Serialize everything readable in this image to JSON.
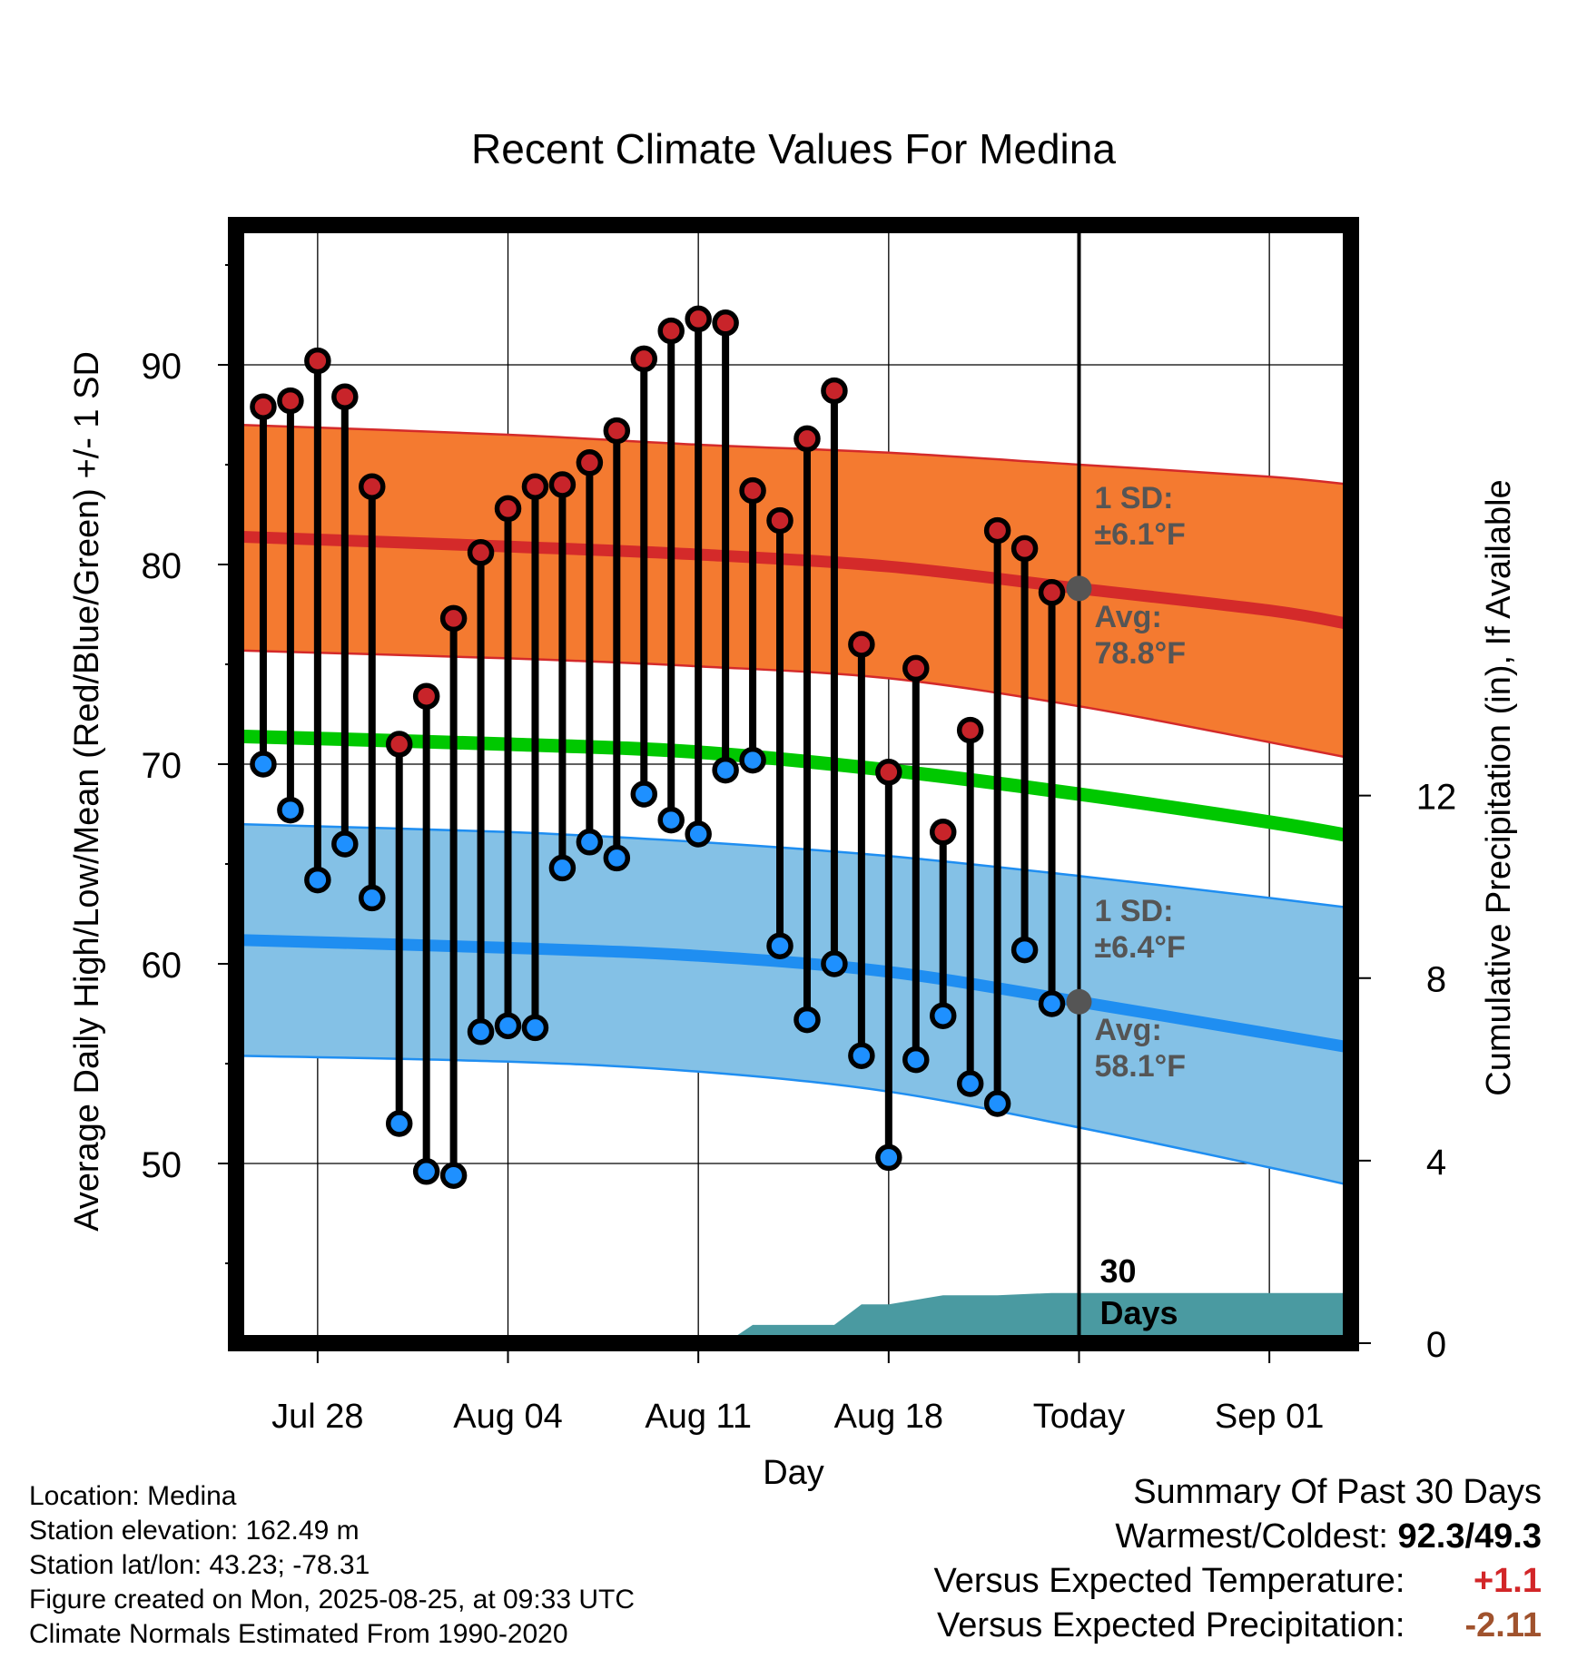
{
  "chart_data": {
    "type": "line",
    "title": "Recent Climate Values For Medina",
    "xlabel": "Day",
    "ylabel": "Average Daily High/Low/Mean (Red/Blue/Green) +/- 1 SD",
    "y2label": "Cumulative Precipitation (in), If Available",
    "x_tick_labels": [
      "Jul 28",
      "Aug 04",
      "Aug 11",
      "Aug 18",
      "Today",
      "Sep 01"
    ],
    "x_range": [
      "Jul 25",
      "Sep 04"
    ],
    "ylim": [
      41,
      97
    ],
    "yticks": [
      50,
      60,
      70,
      80,
      90
    ],
    "y2lim": [
      0,
      24.5
    ],
    "y2ticks": [
      0,
      4,
      8,
      12
    ],
    "grid": true,
    "today": "Aug 25",
    "days": [
      "Jul 25",
      "Jul 26",
      "Jul 27",
      "Jul 28",
      "Jul 29",
      "Jul 30",
      "Jul 31",
      "Aug 01",
      "Aug 02",
      "Aug 03",
      "Aug 04",
      "Aug 05",
      "Aug 06",
      "Aug 07",
      "Aug 08",
      "Aug 09",
      "Aug 10",
      "Aug 11",
      "Aug 12",
      "Aug 13",
      "Aug 14",
      "Aug 15",
      "Aug 16",
      "Aug 17",
      "Aug 18",
      "Aug 19",
      "Aug 20",
      "Aug 21",
      "Aug 22",
      "Aug 23",
      "Aug 24"
    ],
    "daily_high": [
      null,
      87.9,
      88.2,
      90.2,
      88.4,
      83.9,
      71.0,
      73.4,
      77.3,
      80.6,
      82.8,
      83.9,
      84.0,
      85.1,
      86.7,
      90.3,
      91.7,
      92.3,
      92.1,
      83.7,
      82.2,
      86.3,
      88.7,
      76.0,
      69.6,
      74.8,
      66.6,
      71.7,
      81.7,
      80.8,
      78.6
    ],
    "daily_low": [
      null,
      70.0,
      67.7,
      64.2,
      66.0,
      63.3,
      52.0,
      49.6,
      49.4,
      56.6,
      56.9,
      56.8,
      64.8,
      66.1,
      65.3,
      68.5,
      67.2,
      66.5,
      69.7,
      70.2,
      60.9,
      57.2,
      60.0,
      55.4,
      50.3,
      55.2,
      57.4,
      54.0,
      53.0,
      60.7,
      58.0
    ],
    "normal_days": [
      "Jul 25",
      "Aug 04",
      "Aug 11",
      "Aug 18",
      "Aug 25",
      "Sep 01",
      "Sep 04"
    ],
    "normal_high": [
      81.4,
      80.9,
      80.5,
      79.9,
      78.8,
      77.7,
      77.0
    ],
    "normal_high_sd_upper": [
      87.0,
      86.5,
      86.0,
      85.6,
      85.0,
      84.4,
      84.0
    ],
    "normal_high_sd_lower": [
      75.7,
      75.3,
      74.9,
      74.3,
      72.9,
      71.1,
      70.3
    ],
    "normal_mean": [
      71.4,
      71.0,
      70.6,
      69.7,
      68.5,
      67.1,
      66.4
    ],
    "normal_low": [
      61.2,
      60.8,
      60.4,
      59.6,
      58.1,
      56.5,
      55.8
    ],
    "normal_low_sd_upper": [
      67.0,
      66.6,
      66.1,
      65.4,
      64.4,
      63.3,
      62.8
    ],
    "normal_low_sd_lower": [
      55.4,
      55.1,
      54.6,
      53.6,
      51.8,
      49.8,
      48.9
    ],
    "precip_cumulative": {
      "days": [
        "Aug 12",
        "Aug 13",
        "Aug 15",
        "Aug 16",
        "Aug 17",
        "Aug 18",
        "Aug 19",
        "Aug 20",
        "Aug 22",
        "Aug 24",
        "Sep 04"
      ],
      "values": [
        0.0,
        0.4,
        0.4,
        0.4,
        0.85,
        0.85,
        0.95,
        1.05,
        1.05,
        1.1,
        1.1
      ]
    },
    "annotations": {
      "high_sd": "1 SD:\n±6.1°F",
      "high_avg": "Avg:\n78.8°F",
      "low_sd": "1 SD:\n±6.4°F",
      "low_avg": "Avg:\n58.1°F",
      "days_label": "30\nDays"
    }
  },
  "info": {
    "location": "Location: Medina",
    "elevation": "Station elevation: 162.49 m",
    "latlon": "Station lat/lon: 43.23; -78.31",
    "created": "Figure created on Mon, 2025-08-25, at 09:33 UTC",
    "normals": "Climate Normals Estimated From 1990-2020"
  },
  "summary": {
    "title": "Summary Of Past 30 Days",
    "warm_cold_label": "Warmest/Coldest:",
    "warm_cold_value": "92.3/49.3",
    "temp_label": "Versus Expected Temperature:",
    "temp_value": "+1.1",
    "precip_label": "Versus Expected Precipitation:",
    "precip_value": "-2.11"
  },
  "colors": {
    "high_band": "#f47a30",
    "high_band_edge": "#d42a2a",
    "high_line": "#d42a2a",
    "low_band": "#84c1e6",
    "low_band_edge": "#1f8ef1",
    "low_line": "#1f8ef1",
    "mean_line": "#00c800",
    "precip_fill": "#4a9aa1",
    "high_marker": "#c8242a",
    "low_marker": "#1e90ff",
    "annotation_text": "#555555"
  }
}
